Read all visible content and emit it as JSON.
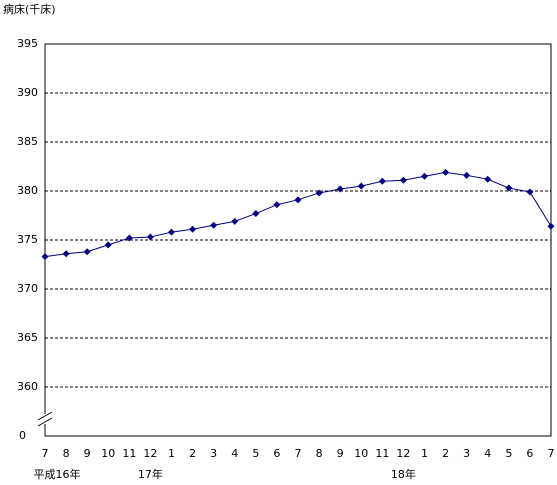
{
  "chart_data": {
    "type": "line",
    "y_axis_label": "病床(千床)",
    "categories": [
      "7",
      "8",
      "9",
      "10",
      "11",
      "12",
      "1",
      "2",
      "3",
      "4",
      "5",
      "6",
      "7",
      "8",
      "9",
      "10",
      "11",
      "12",
      "1",
      "2",
      "3",
      "4",
      "5",
      "6",
      "7"
    ],
    "year_labels": [
      "平成16年",
      null,
      null,
      null,
      null,
      "17年",
      null,
      null,
      null,
      null,
      null,
      null,
      null,
      null,
      null,
      null,
      null,
      "18年",
      null,
      null,
      null,
      null,
      null,
      null,
      null
    ],
    "series": [
      {
        "color": "#000080",
        "values": [
          373.3,
          373.6,
          373.8,
          374.5,
          375.2,
          375.3,
          375.8,
          376.1,
          376.5,
          376.9,
          377.7,
          378.6,
          379.1,
          379.8,
          380.2,
          380.5,
          381.0,
          381.1,
          381.5,
          381.9,
          381.6,
          381.2,
          380.3,
          379.9,
          376.4
        ]
      }
    ],
    "ylim": [
      355,
      395
    ],
    "yticks": [
      360,
      365,
      370,
      375,
      380,
      385,
      390,
      395
    ],
    "axis_break_label": 0,
    "grid": true
  }
}
